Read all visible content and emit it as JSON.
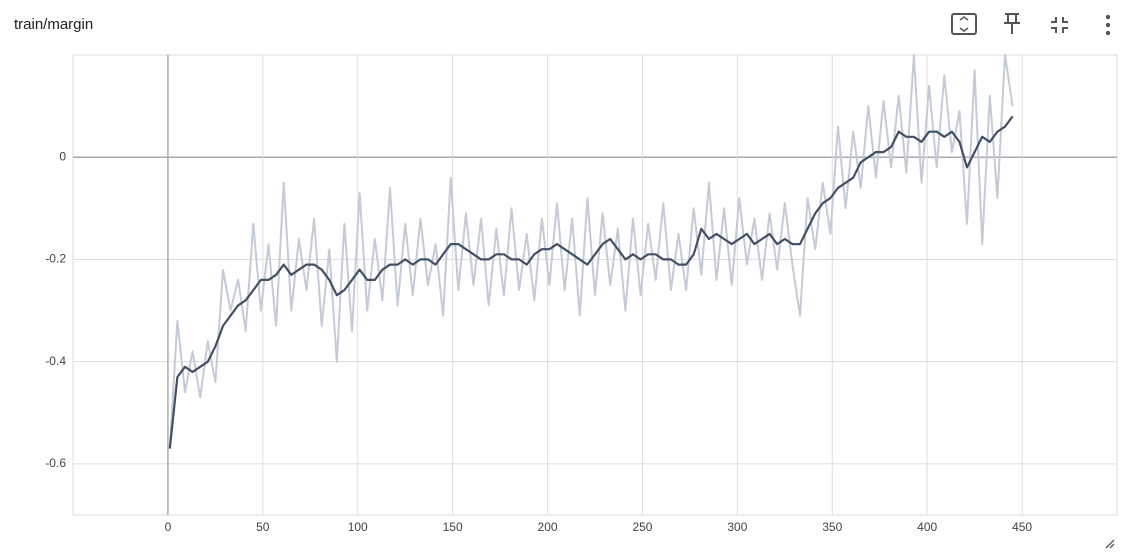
{
  "chart_data": {
    "type": "line",
    "title": "train/margin",
    "xlim": [
      -50,
      500
    ],
    "xticks": [
      0,
      50,
      100,
      150,
      200,
      250,
      300,
      350,
      400,
      450
    ],
    "ylim": [
      -0.7,
      0.2
    ],
    "yticks": [
      -0.6,
      -0.4,
      -0.2,
      0
    ],
    "grid": true,
    "x": [
      1,
      5,
      9,
      13,
      17,
      21,
      25,
      29,
      33,
      37,
      41,
      45,
      49,
      53,
      57,
      61,
      65,
      69,
      73,
      77,
      81,
      85,
      89,
      93,
      97,
      101,
      105,
      109,
      113,
      117,
      121,
      125,
      129,
      133,
      137,
      141,
      145,
      149,
      153,
      157,
      161,
      165,
      169,
      173,
      177,
      181,
      185,
      189,
      193,
      197,
      201,
      205,
      209,
      213,
      217,
      221,
      225,
      229,
      233,
      237,
      241,
      245,
      249,
      253,
      257,
      261,
      265,
      269,
      273,
      277,
      281,
      285,
      289,
      293,
      297,
      301,
      305,
      309,
      313,
      317,
      321,
      325,
      329,
      333,
      337,
      341,
      345,
      349,
      353,
      357,
      361,
      365,
      369,
      373,
      377,
      381,
      385,
      389,
      393,
      397,
      401,
      405,
      409,
      413,
      417,
      421,
      425,
      429,
      433,
      437,
      441,
      445
    ],
    "series": [
      {
        "color": "#c5cbd6",
        "values": [
          -0.57,
          -0.32,
          -0.46,
          -0.38,
          -0.47,
          -0.36,
          -0.44,
          -0.22,
          -0.3,
          -0.24,
          -0.34,
          -0.13,
          -0.3,
          -0.17,
          -0.33,
          -0.05,
          -0.3,
          -0.16,
          -0.26,
          -0.12,
          -0.33,
          -0.18,
          -0.4,
          -0.13,
          -0.34,
          -0.07,
          -0.3,
          -0.16,
          -0.28,
          -0.06,
          -0.29,
          -0.13,
          -0.27,
          -0.12,
          -0.25,
          -0.17,
          -0.31,
          -0.04,
          -0.26,
          -0.11,
          -0.25,
          -0.12,
          -0.29,
          -0.14,
          -0.27,
          -0.1,
          -0.26,
          -0.15,
          -0.28,
          -0.12,
          -0.25,
          -0.09,
          -0.26,
          -0.12,
          -0.31,
          -0.08,
          -0.27,
          -0.11,
          -0.25,
          -0.14,
          -0.3,
          -0.12,
          -0.27,
          -0.13,
          -0.24,
          -0.09,
          -0.26,
          -0.15,
          -0.26,
          -0.1,
          -0.23,
          -0.05,
          -0.24,
          -0.1,
          -0.25,
          -0.08,
          -0.21,
          -0.12,
          -0.24,
          -0.11,
          -0.22,
          -0.09,
          -0.21,
          -0.31,
          -0.08,
          -0.18,
          -0.05,
          -0.15,
          0.06,
          -0.1,
          0.05,
          -0.06,
          0.1,
          -0.04,
          0.11,
          -0.02,
          0.12,
          -0.03,
          0.2,
          -0.05,
          0.14,
          -0.02,
          0.16,
          0.01,
          0.09,
          -0.13,
          0.17,
          -0.17,
          0.12,
          -0.08,
          0.2,
          0.1
        ]
      },
      {
        "color": "#425066",
        "values": [
          -0.57,
          -0.43,
          -0.41,
          -0.42,
          -0.41,
          -0.4,
          -0.37,
          -0.33,
          -0.31,
          -0.29,
          -0.28,
          -0.26,
          -0.24,
          -0.24,
          -0.23,
          -0.21,
          -0.23,
          -0.22,
          -0.21,
          -0.21,
          -0.22,
          -0.24,
          -0.27,
          -0.26,
          -0.24,
          -0.22,
          -0.24,
          -0.24,
          -0.22,
          -0.21,
          -0.21,
          -0.2,
          -0.21,
          -0.2,
          -0.2,
          -0.21,
          -0.19,
          -0.17,
          -0.17,
          -0.18,
          -0.19,
          -0.2,
          -0.2,
          -0.19,
          -0.19,
          -0.2,
          -0.2,
          -0.21,
          -0.19,
          -0.18,
          -0.18,
          -0.17,
          -0.18,
          -0.19,
          -0.2,
          -0.21,
          -0.19,
          -0.17,
          -0.16,
          -0.18,
          -0.2,
          -0.19,
          -0.2,
          -0.19,
          -0.19,
          -0.2,
          -0.2,
          -0.21,
          -0.21,
          -0.19,
          -0.14,
          -0.16,
          -0.15,
          -0.16,
          -0.17,
          -0.16,
          -0.15,
          -0.17,
          -0.16,
          -0.15,
          -0.17,
          -0.16,
          -0.17,
          -0.17,
          -0.14,
          -0.11,
          -0.09,
          -0.08,
          -0.06,
          -0.05,
          -0.04,
          -0.01,
          0.0,
          0.01,
          0.01,
          0.02,
          0.05,
          0.04,
          0.04,
          0.03,
          0.05,
          0.05,
          0.04,
          0.05,
          0.03,
          -0.02,
          0.01,
          0.04,
          0.03,
          0.05,
          0.06,
          0.08
        ]
      }
    ]
  }
}
